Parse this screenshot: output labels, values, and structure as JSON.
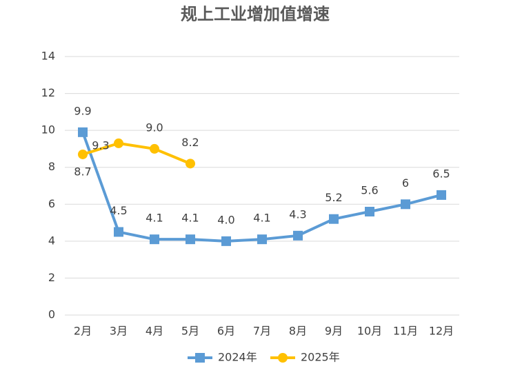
{
  "chart_data": {
    "type": "line",
    "title": "规上工业增加值增速",
    "categories": [
      "2月",
      "3月",
      "4月",
      "5月",
      "6月",
      "7月",
      "8月",
      "9月",
      "10月",
      "11月",
      "12月"
    ],
    "series": [
      {
        "name": "2024年",
        "color": "#5b9bd5",
        "marker": "square",
        "values": [
          9.9,
          4.5,
          4.1,
          4.1,
          4.0,
          4.1,
          4.3,
          5.2,
          5.6,
          6,
          6.5
        ],
        "value_labels": [
          "9.9",
          "4.5",
          "4.1",
          "4.1",
          "4.0",
          "4.1",
          "4.3",
          "5.2",
          "5.6",
          "6",
          "6.5"
        ]
      },
      {
        "name": "2025年",
        "color": "#ffc000",
        "marker": "circle",
        "values": [
          8.7,
          9.3,
          9.0,
          8.2,
          null,
          null,
          null,
          null,
          null,
          null,
          null
        ],
        "value_labels": [
          "8.7",
          "9.3",
          "9.0",
          "8.2",
          null,
          null,
          null,
          null,
          null,
          null,
          null
        ]
      }
    ],
    "ylim": [
      0,
      14
    ],
    "yticks": [
      0,
      2,
      4,
      6,
      8,
      10,
      12,
      14
    ],
    "grid": true,
    "legend": "bottom"
  }
}
